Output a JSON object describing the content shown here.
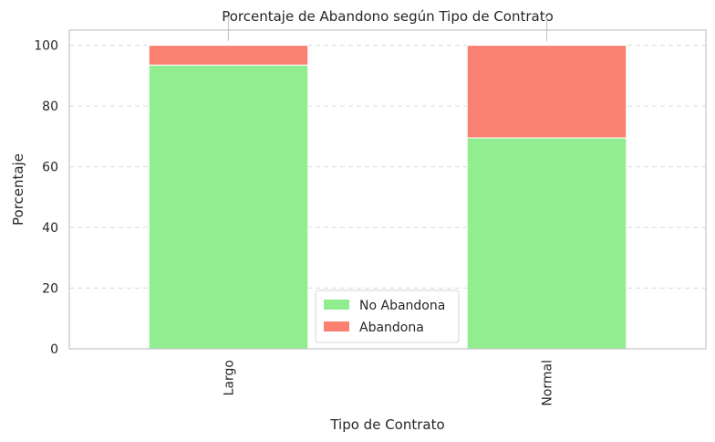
{
  "chart_data": {
    "type": "bar",
    "stacked": true,
    "title": "Porcentaje de Abandono según Tipo de Contrato",
    "xlabel": "Tipo de Contrato",
    "ylabel": "Porcentaje",
    "categories": [
      "Largo",
      "Normal"
    ],
    "series": [
      {
        "name": "No Abandona",
        "values": [
          93.5,
          69.5
        ],
        "color": "#90ee90"
      },
      {
        "name": "Abandona",
        "values": [
          6.5,
          30.5
        ],
        "color": "#fa8072"
      }
    ],
    "ylim": [
      0,
      105
    ],
    "yticks": [
      0,
      20,
      40,
      60,
      80,
      100
    ],
    "grid": "y-dashed",
    "legend_position": "lower-center",
    "x_tick_rotation": 90
  }
}
